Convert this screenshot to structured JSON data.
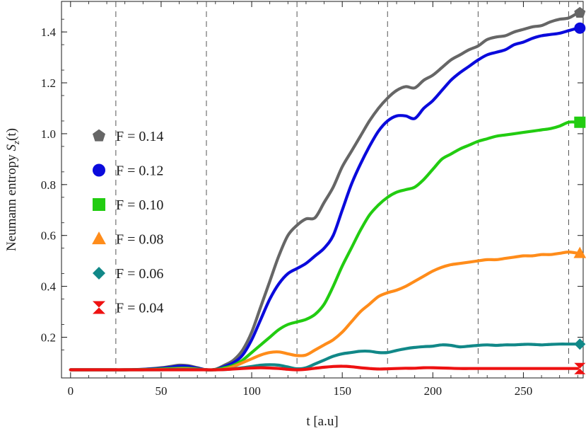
{
  "chart_data": {
    "type": "line",
    "title": "",
    "xlabel": "t  [a.u]",
    "ylabel_prefix": "Neumann  entropy  ",
    "ylabel_symbol": "S",
    "ylabel_subscript": "z",
    "ylabel_suffix": "(t)",
    "xlim": [
      -5,
      283
    ],
    "ylim": [
      0.04,
      1.52
    ],
    "xticks": [
      0,
      50,
      100,
      150,
      200,
      250
    ],
    "yticks": [
      0.2,
      0.4,
      0.6,
      0.8,
      1.0,
      1.2,
      1.4
    ],
    "ytick_labels": [
      "0.2",
      "0.4",
      "0.6",
      "0.8",
      "1.0",
      "1.2",
      "1.4"
    ],
    "vlines": [
      25,
      75,
      125,
      175,
      225,
      275
    ],
    "grid": false,
    "legend_position": "left",
    "x": [
      0,
      10,
      20,
      30,
      40,
      50,
      55,
      60,
      65,
      70,
      75,
      80,
      85,
      90,
      95,
      100,
      105,
      110,
      115,
      120,
      125,
      130,
      135,
      140,
      145,
      150,
      155,
      160,
      165,
      170,
      175,
      180,
      185,
      190,
      195,
      200,
      205,
      210,
      215,
      220,
      225,
      230,
      235,
      240,
      245,
      250,
      255,
      260,
      265,
      270,
      275,
      280
    ],
    "series": [
      {
        "name": "F = 0.14",
        "color": "#666666",
        "marker": "pentagon",
        "values": [
          0.072,
          0.072,
          0.072,
          0.072,
          0.074,
          0.08,
          0.085,
          0.09,
          0.088,
          0.08,
          0.072,
          0.074,
          0.09,
          0.11,
          0.15,
          0.22,
          0.32,
          0.42,
          0.52,
          0.6,
          0.64,
          0.665,
          0.67,
          0.73,
          0.79,
          0.87,
          0.93,
          0.99,
          1.05,
          1.1,
          1.14,
          1.17,
          1.185,
          1.18,
          1.21,
          1.23,
          1.26,
          1.29,
          1.31,
          1.33,
          1.345,
          1.37,
          1.38,
          1.385,
          1.4,
          1.41,
          1.42,
          1.425,
          1.44,
          1.45,
          1.455,
          1.475
        ]
      },
      {
        "name": "F = 0.12",
        "color": "#0a0adc",
        "marker": "circle",
        "values": [
          0.072,
          0.072,
          0.072,
          0.072,
          0.074,
          0.078,
          0.082,
          0.086,
          0.085,
          0.078,
          0.072,
          0.073,
          0.085,
          0.1,
          0.13,
          0.19,
          0.27,
          0.35,
          0.41,
          0.45,
          0.47,
          0.49,
          0.52,
          0.55,
          0.6,
          0.7,
          0.8,
          0.88,
          0.95,
          1.01,
          1.05,
          1.07,
          1.07,
          1.06,
          1.1,
          1.13,
          1.17,
          1.21,
          1.24,
          1.265,
          1.29,
          1.31,
          1.32,
          1.33,
          1.35,
          1.36,
          1.375,
          1.385,
          1.39,
          1.395,
          1.405,
          1.415
        ]
      },
      {
        "name": "F = 0.10",
        "color": "#22cc11",
        "marker": "square",
        "values": [
          0.072,
          0.072,
          0.072,
          0.072,
          0.073,
          0.075,
          0.077,
          0.078,
          0.078,
          0.075,
          0.072,
          0.073,
          0.08,
          0.09,
          0.11,
          0.14,
          0.17,
          0.2,
          0.23,
          0.25,
          0.26,
          0.27,
          0.29,
          0.33,
          0.4,
          0.48,
          0.55,
          0.62,
          0.68,
          0.72,
          0.75,
          0.77,
          0.78,
          0.79,
          0.82,
          0.86,
          0.9,
          0.92,
          0.94,
          0.955,
          0.97,
          0.98,
          0.99,
          0.995,
          1.0,
          1.005,
          1.01,
          1.015,
          1.02,
          1.03,
          1.045,
          1.045
        ]
      },
      {
        "name": "F = 0.08",
        "color": "#ff8c1a",
        "marker": "triangle",
        "values": [
          0.072,
          0.072,
          0.072,
          0.072,
          0.072,
          0.073,
          0.074,
          0.075,
          0.075,
          0.074,
          0.072,
          0.072,
          0.075,
          0.085,
          0.1,
          0.115,
          0.13,
          0.14,
          0.142,
          0.135,
          0.128,
          0.13,
          0.15,
          0.17,
          0.19,
          0.22,
          0.26,
          0.3,
          0.33,
          0.36,
          0.375,
          0.385,
          0.4,
          0.42,
          0.44,
          0.46,
          0.475,
          0.485,
          0.49,
          0.495,
          0.5,
          0.505,
          0.505,
          0.51,
          0.515,
          0.52,
          0.52,
          0.525,
          0.525,
          0.53,
          0.535,
          0.53
        ]
      },
      {
        "name": "F = 0.06",
        "color": "#118888",
        "marker": "diamond",
        "values": [
          0.072,
          0.072,
          0.072,
          0.072,
          0.072,
          0.072,
          0.073,
          0.073,
          0.073,
          0.073,
          0.072,
          0.072,
          0.073,
          0.076,
          0.08,
          0.085,
          0.09,
          0.092,
          0.09,
          0.083,
          0.076,
          0.08,
          0.095,
          0.11,
          0.125,
          0.135,
          0.14,
          0.145,
          0.145,
          0.14,
          0.14,
          0.148,
          0.155,
          0.16,
          0.163,
          0.165,
          0.17,
          0.168,
          0.162,
          0.165,
          0.168,
          0.17,
          0.168,
          0.17,
          0.17,
          0.172,
          0.172,
          0.17,
          0.172,
          0.173,
          0.173,
          0.173
        ]
      },
      {
        "name": "F = 0.04",
        "color": "#ee1111",
        "marker": "hourglass",
        "values": [
          0.072,
          0.072,
          0.072,
          0.072,
          0.072,
          0.072,
          0.072,
          0.072,
          0.072,
          0.072,
          0.072,
          0.072,
          0.073,
          0.075,
          0.077,
          0.079,
          0.08,
          0.079,
          0.077,
          0.074,
          0.072,
          0.074,
          0.078,
          0.082,
          0.085,
          0.086,
          0.084,
          0.08,
          0.077,
          0.075,
          0.076,
          0.077,
          0.078,
          0.078,
          0.08,
          0.08,
          0.079,
          0.078,
          0.077,
          0.077,
          0.077,
          0.077,
          0.077,
          0.077,
          0.077,
          0.077,
          0.077,
          0.077,
          0.077,
          0.077,
          0.077,
          0.077
        ]
      }
    ]
  }
}
